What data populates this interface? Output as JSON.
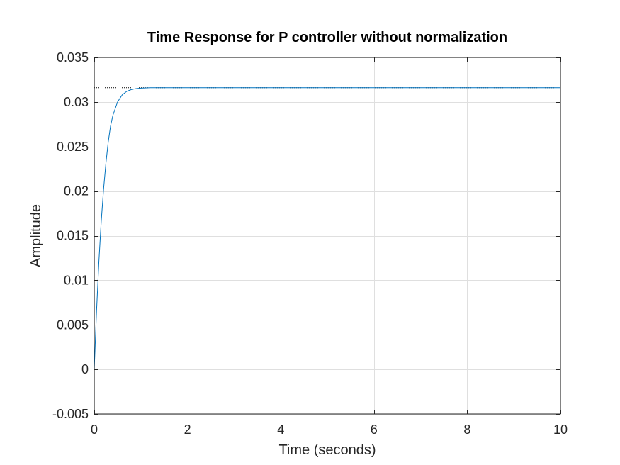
{
  "chart_data": {
    "type": "line",
    "title": "Time Response for P controller without normalization",
    "xlabel": "Time (seconds)",
    "ylabel": "Amplitude",
    "xlim": [
      0,
      10
    ],
    "ylim": [
      -0.005,
      0.035
    ],
    "xticks": [
      0,
      2,
      4,
      6,
      8,
      10
    ],
    "xtick_labels": [
      "0",
      "2",
      "4",
      "6",
      "8",
      "10"
    ],
    "yticks": [
      -0.005,
      0,
      0.005,
      0.01,
      0.015,
      0.02,
      0.025,
      0.03,
      0.035
    ],
    "ytick_labels": [
      "-0.005",
      "0",
      "0.005",
      "0.01",
      "0.015",
      "0.02",
      "0.025",
      "0.03",
      "0.035"
    ],
    "grid": true,
    "steady_state": {
      "value": 0.0316,
      "style": "dotted",
      "color": "#000000"
    },
    "series": [
      {
        "color": "#0072BD",
        "x": [
          0,
          0.02,
          0.05,
          0.1,
          0.15,
          0.2,
          0.25,
          0.3,
          0.35,
          0.4,
          0.5,
          0.6,
          0.7,
          0.8,
          0.9,
          1.0,
          1.2,
          1.5,
          2,
          3,
          4,
          5,
          6,
          7,
          8,
          9,
          10
        ],
        "y": [
          0,
          0.0027,
          0.0066,
          0.0121,
          0.0166,
          0.0202,
          0.0231,
          0.0255,
          0.0273,
          0.0285,
          0.03,
          0.0308,
          0.0312,
          0.0314,
          0.0315,
          0.03155,
          0.0316,
          0.0316,
          0.0316,
          0.0316,
          0.0316,
          0.0316,
          0.0316,
          0.0316,
          0.0316,
          0.0316,
          0.0316
        ]
      }
    ]
  }
}
